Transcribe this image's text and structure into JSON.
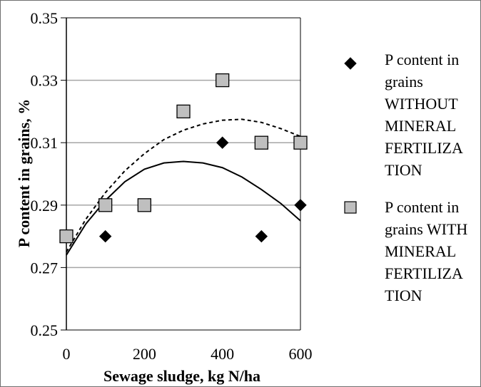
{
  "chart_data": {
    "type": "scatter",
    "xlabel": "Sewage sludge, kg N/ha",
    "ylabel": "P content in grains, %",
    "xlim": [
      0,
      600
    ],
    "ylim": [
      0.25,
      0.35
    ],
    "xticks": [
      0,
      200,
      400,
      600
    ],
    "yticks": [
      0.25,
      0.27,
      0.29,
      0.31,
      0.33,
      0.35
    ],
    "xtick_labels": [
      "0",
      "200",
      "400",
      "600"
    ],
    "ytick_labels": [
      "0.25",
      "0.27",
      "0.29",
      "0.31",
      "0.33",
      "0.35"
    ],
    "grid": "horizontal",
    "legend_position": "right",
    "series": [
      {
        "name": "P content in grains WITHOUT MINERAL FERTILIZATION",
        "legend_lines": [
          "P content in",
          "grains",
          "WITHOUT",
          "MINERAL",
          "FERTILIZA",
          "TION"
        ],
        "marker": "diamond",
        "color": "#000000",
        "x": [
          100,
          400,
          500,
          600
        ],
        "y": [
          0.28,
          0.31,
          0.28,
          0.29
        ],
        "trendline": {
          "type": "polynomial",
          "style": "solid",
          "x": [
            0,
            50,
            100,
            150,
            200,
            250,
            300,
            350,
            400,
            450,
            500,
            550,
            600
          ],
          "y": [
            0.274,
            0.284,
            0.2915,
            0.2975,
            0.3015,
            0.3035,
            0.304,
            0.3035,
            0.302,
            0.299,
            0.295,
            0.2905,
            0.285
          ]
        }
      },
      {
        "name": "P content in grains WITH MINERAL FERTILIZATION",
        "legend_lines": [
          "P content in",
          "grains WITH",
          "MINERAL",
          "FERTILIZA",
          "TION"
        ],
        "marker": "square",
        "color": "#bfbfbf",
        "x": [
          0,
          100,
          200,
          300,
          400,
          500,
          600
        ],
        "y": [
          0.28,
          0.29,
          0.29,
          0.32,
          0.33,
          0.31,
          0.31
        ],
        "trendline": {
          "type": "polynomial",
          "style": "dashed",
          "x": [
            0,
            50,
            100,
            150,
            200,
            250,
            300,
            350,
            400,
            450,
            500,
            550,
            600
          ],
          "y": [
            0.275,
            0.2855,
            0.294,
            0.301,
            0.3065,
            0.311,
            0.314,
            0.316,
            0.3172,
            0.3175,
            0.3165,
            0.3145,
            0.312
          ]
        }
      }
    ]
  }
}
